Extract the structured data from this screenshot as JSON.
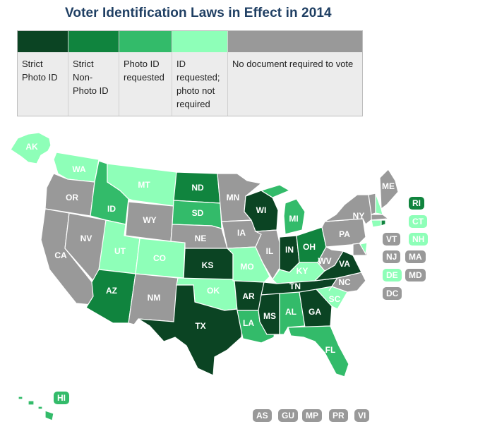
{
  "title": "Voter Identification Laws in Effect in 2014",
  "colors": {
    "strict_photo": "#0b4423",
    "strict_nonphoto": "#10843e",
    "photo_requested": "#33bb6a",
    "id_requested": "#8effb8",
    "no_doc": "#999999"
  },
  "legend": [
    {
      "label": "Strict Photo ID",
      "color": "#0b4423"
    },
    {
      "label": "Strict Non-Photo ID",
      "color": "#10843e"
    },
    {
      "label": "Photo ID requested",
      "color": "#33bb6a"
    },
    {
      "label": "ID requested; photo not required",
      "color": "#8effb8"
    },
    {
      "label": "No document required to vote",
      "color": "#999999"
    }
  ],
  "states": {
    "AK": "id_requested",
    "HI": "photo_requested",
    "WA": "id_requested",
    "OR": "no_doc",
    "CA": "no_doc",
    "NV": "no_doc",
    "ID": "photo_requested",
    "MT": "id_requested",
    "WY": "no_doc",
    "UT": "id_requested",
    "CO": "id_requested",
    "AZ": "strict_nonphoto",
    "NM": "no_doc",
    "ND": "strict_nonphoto",
    "SD": "photo_requested",
    "NE": "no_doc",
    "KS": "strict_photo",
    "OK": "id_requested",
    "TX": "strict_photo",
    "MN": "no_doc",
    "IA": "no_doc",
    "MO": "id_requested",
    "AR": "strict_photo",
    "LA": "photo_requested",
    "WI": "strict_photo",
    "IL": "no_doc",
    "MS": "strict_photo",
    "MI": "photo_requested",
    "IN": "strict_photo",
    "KY": "id_requested",
    "TN": "strict_photo",
    "AL": "photo_requested",
    "OH": "strict_nonphoto",
    "GA": "strict_photo",
    "FL": "photo_requested",
    "SC": "id_requested",
    "NC": "no_doc",
    "VA": "strict_photo",
    "WV": "no_doc",
    "PA": "no_doc",
    "NY": "no_doc",
    "ME": "no_doc",
    "NH": "id_requested",
    "VT": "no_doc",
    "MA": "no_doc",
    "RI": "strict_nonphoto",
    "CT": "id_requested",
    "NJ": "no_doc",
    "DE": "id_requested",
    "MD": "no_doc",
    "DC": "no_doc"
  },
  "small_states": [
    "RI",
    "CT",
    "VT",
    "NH",
    "NJ",
    "MA",
    "DE",
    "MD",
    "DC"
  ],
  "territories": [
    "AS",
    "GU",
    "MP",
    "PR",
    "VI"
  ],
  "territory_category": "no_doc"
}
